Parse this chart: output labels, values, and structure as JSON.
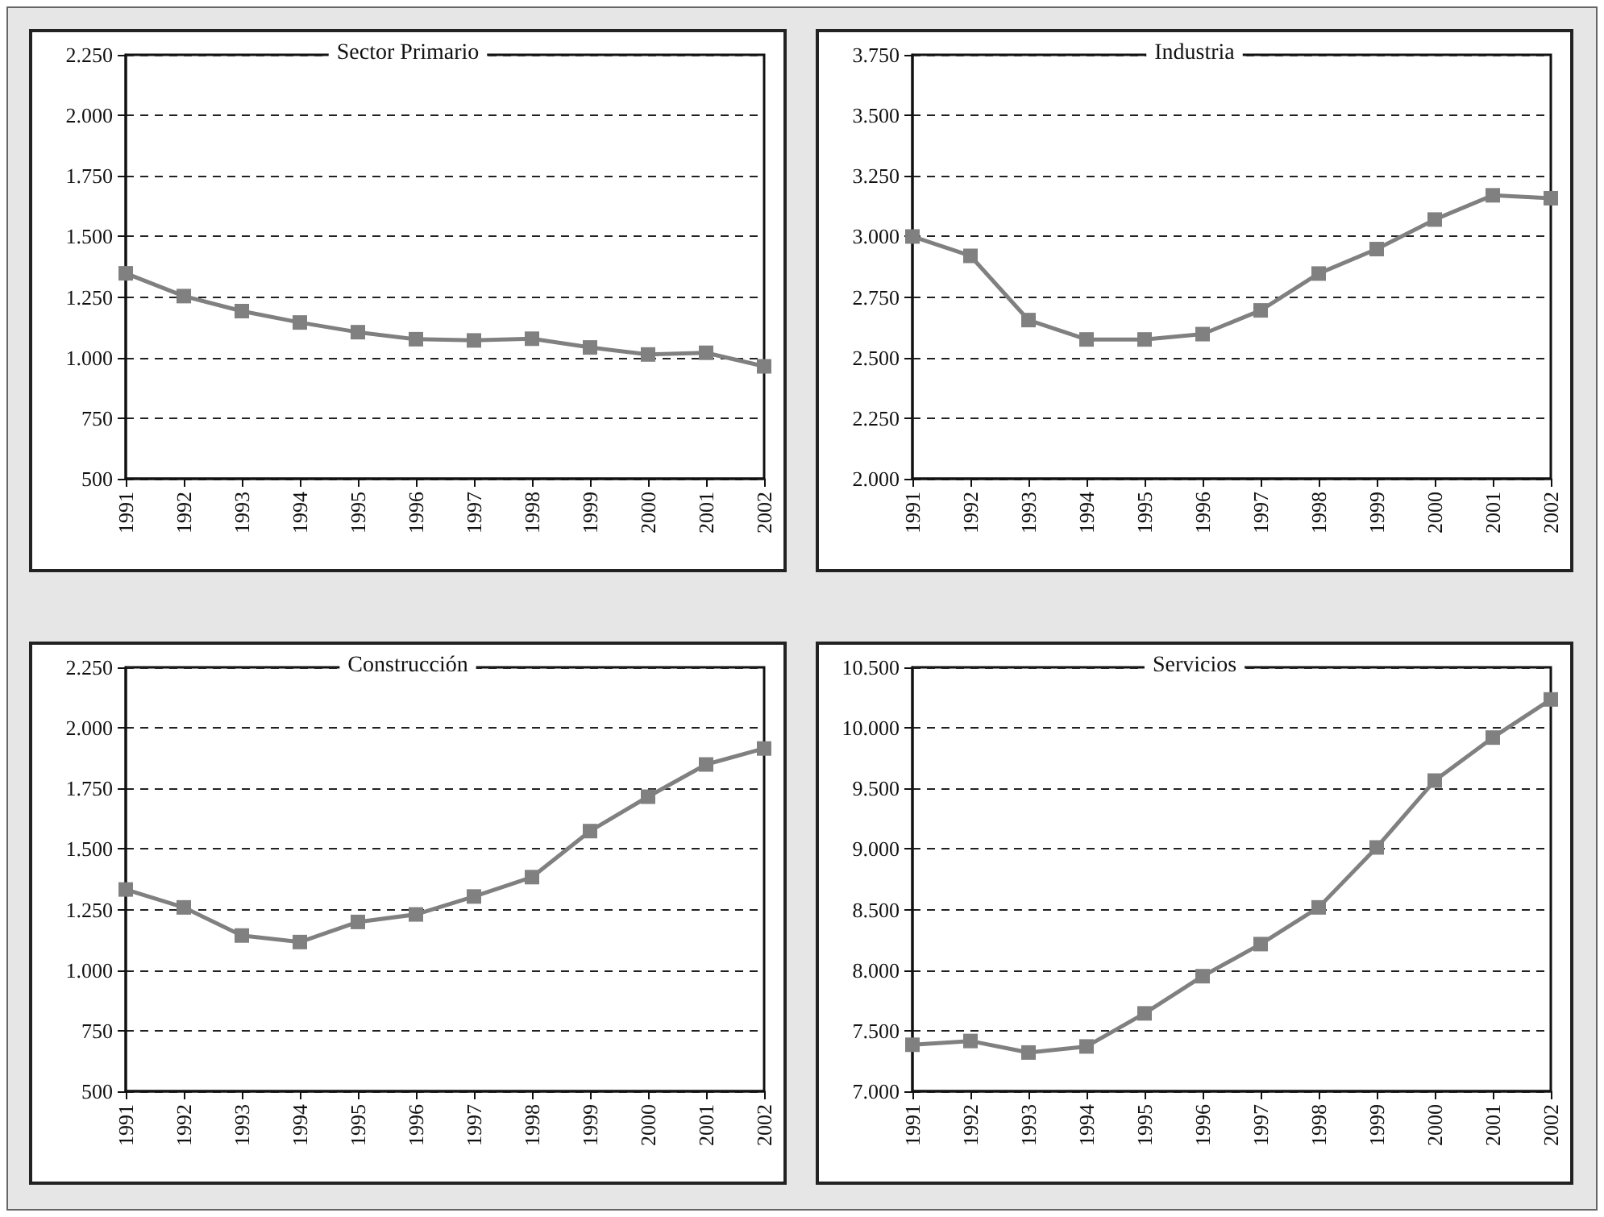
{
  "chart_data": [
    {
      "type": "line",
      "title": "Sector Primario",
      "categories": [
        "1991",
        "1992",
        "1993",
        "1994",
        "1995",
        "1996",
        "1997",
        "1998",
        "1999",
        "2000",
        "2001",
        "2002"
      ],
      "values": [
        1348,
        1254,
        1192,
        1145,
        1105,
        1076,
        1071,
        1078,
        1042,
        1013,
        1020,
        964
      ],
      "color": "#808080",
      "ylim": [
        500,
        2250
      ],
      "yticks": [
        {
          "value": 500,
          "label": "500"
        },
        {
          "value": 750,
          "label": "750"
        },
        {
          "value": 1000,
          "label": "1.000"
        },
        {
          "value": 1250,
          "label": "1.250"
        },
        {
          "value": 1500,
          "label": "1.500"
        },
        {
          "value": 1750,
          "label": "1.750"
        },
        {
          "value": 2000,
          "label": "2.000"
        },
        {
          "value": 2250,
          "label": "2.250"
        }
      ],
      "grid": "y",
      "marker": "square",
      "line_style": "solid"
    },
    {
      "type": "line",
      "title": "Industria",
      "categories": [
        "1991",
        "1992",
        "1993",
        "1994",
        "1995",
        "1996",
        "1997",
        "1998",
        "1999",
        "2000",
        "2001",
        "2002"
      ],
      "values": [
        3000,
        2920,
        2655,
        2575,
        2575,
        2597,
        2695,
        2847,
        2948,
        3070,
        3170,
        3158
      ],
      "color": "#808080",
      "ylim": [
        2000,
        3750
      ],
      "yticks": [
        {
          "value": 2000,
          "label": "2.000"
        },
        {
          "value": 2250,
          "label": "2.250"
        },
        {
          "value": 2500,
          "label": "2.500"
        },
        {
          "value": 2750,
          "label": "2.750"
        },
        {
          "value": 3000,
          "label": "3.000"
        },
        {
          "value": 3250,
          "label": "3.250"
        },
        {
          "value": 3500,
          "label": "3.500"
        },
        {
          "value": 3750,
          "label": "3.750"
        }
      ],
      "grid": "y",
      "marker": "square",
      "line_style": "solid"
    },
    {
      "type": "line",
      "title": "Construcción",
      "categories": [
        "1991",
        "1992",
        "1993",
        "1994",
        "1995",
        "1996",
        "1997",
        "1998",
        "1999",
        "2000",
        "2001",
        "2002"
      ],
      "values": [
        1333,
        1259,
        1143,
        1116,
        1199,
        1230,
        1304,
        1384,
        1574,
        1716,
        1849,
        1915
      ],
      "color": "#808080",
      "ylim": [
        500,
        2250
      ],
      "yticks": [
        {
          "value": 500,
          "label": "500"
        },
        {
          "value": 750,
          "label": "750"
        },
        {
          "value": 1000,
          "label": "1.000"
        },
        {
          "value": 1250,
          "label": "1.250"
        },
        {
          "value": 1500,
          "label": "1.500"
        },
        {
          "value": 1750,
          "label": "1.750"
        },
        {
          "value": 2000,
          "label": "2.000"
        },
        {
          "value": 2250,
          "label": "2.250"
        }
      ],
      "grid": "y",
      "marker": "square",
      "line_style": "solid"
    },
    {
      "type": "line",
      "title": "Servicios",
      "categories": [
        "1991",
        "1992",
        "1993",
        "1994",
        "1995",
        "1996",
        "1997",
        "1998",
        "1999",
        "2000",
        "2001",
        "2002"
      ],
      "values": [
        7384,
        7415,
        7320,
        7370,
        7643,
        7950,
        8215,
        8518,
        9013,
        9565,
        9920,
        10235
      ],
      "color": "#808080",
      "ylim": [
        7000,
        10500
      ],
      "yticks": [
        {
          "value": 7000,
          "label": "7.000"
        },
        {
          "value": 7500,
          "label": "7.500"
        },
        {
          "value": 8000,
          "label": "8.000"
        },
        {
          "value": 8500,
          "label": "8.500"
        },
        {
          "value": 9000,
          "label": "9.000"
        },
        {
          "value": 9500,
          "label": "9.500"
        },
        {
          "value": 10000,
          "label": "10.000"
        },
        {
          "value": 10500,
          "label": "10.500"
        }
      ],
      "grid": "y",
      "marker": "square",
      "line_style": "solid"
    }
  ]
}
